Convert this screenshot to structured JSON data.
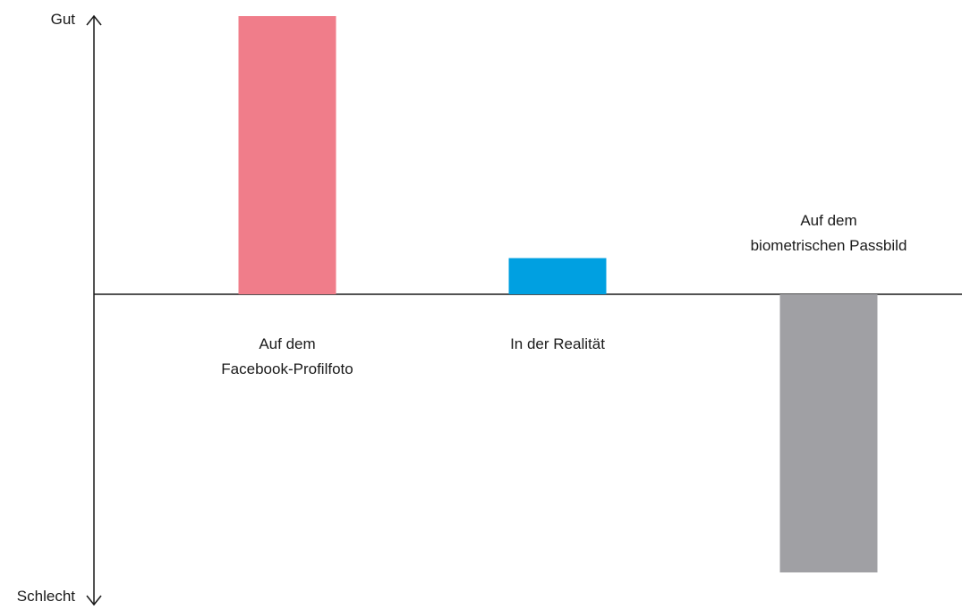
{
  "chart_data": {
    "type": "bar",
    "title": "",
    "axis_top_label": "Gut",
    "axis_bottom_label": "Schlecht",
    "ylim": [
      -1,
      1
    ],
    "grid": false,
    "categories": [
      [
        "Auf dem",
        "Facebook-Profilfoto"
      ],
      [
        "In der Realität"
      ],
      [
        "Auf dem",
        "biometrischen Passbild"
      ]
    ],
    "values": [
      1.0,
      0.13,
      -1.0
    ],
    "colors": [
      "#f07d8a",
      "#00a0e1",
      "#a0a0a4"
    ],
    "axis_color": "#1a1a1a"
  }
}
